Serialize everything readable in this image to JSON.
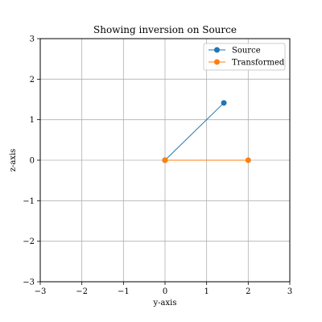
{
  "chart_data": {
    "type": "line",
    "title": "Showing inversion on Source",
    "xlabel": "y-axis",
    "ylabel": "z-axis",
    "xlim": [
      -3,
      3
    ],
    "ylim": [
      -3,
      3
    ],
    "xticks": [
      -3,
      -2,
      -1,
      0,
      1,
      2,
      3
    ],
    "yticks": [
      -3,
      -2,
      -1,
      0,
      1,
      2,
      3
    ],
    "xtick_labels": [
      "−3",
      "−2",
      "−1",
      "0",
      "1",
      "2",
      "3"
    ],
    "ytick_labels": [
      "−3",
      "−2",
      "−1",
      "0",
      "1",
      "2",
      "3"
    ],
    "grid": true,
    "legend_position": "top-right",
    "series": [
      {
        "name": "Source",
        "color": "#1f77b4",
        "marker": "circle",
        "points": [
          [
            0,
            0
          ],
          [
            1.414,
            1.414
          ]
        ]
      },
      {
        "name": "Transformed",
        "color": "#ff7f0e",
        "marker": "circle",
        "points": [
          [
            0,
            0
          ],
          [
            2,
            0
          ]
        ]
      }
    ]
  }
}
